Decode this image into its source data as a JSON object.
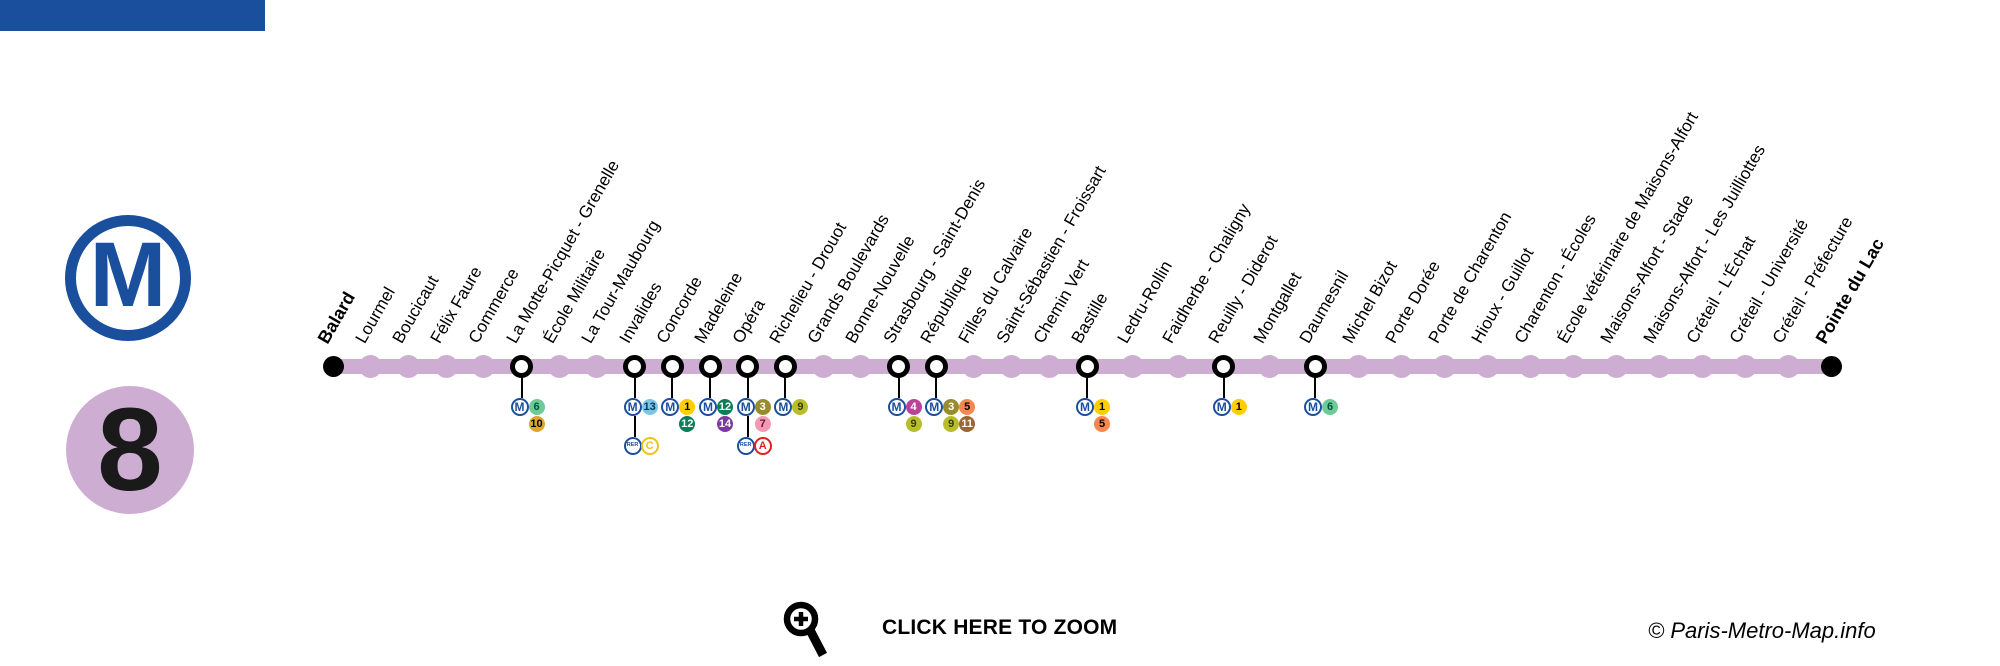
{
  "branding": {
    "top_bar_color": "#1A4F9E",
    "metro_blue": "#1A4F9E",
    "line_color": "#CEADD2",
    "metro_letter": "M",
    "line_number": "8"
  },
  "map": {
    "line_name": "Paris Metro Line 8",
    "stations": [
      {
        "label": "Balard",
        "kind": "terminus"
      },
      {
        "label": "Lourmel",
        "kind": "stop"
      },
      {
        "label": "Boucicaut",
        "kind": "stop"
      },
      {
        "label": "Félix Faure",
        "kind": "stop"
      },
      {
        "label": "Commerce",
        "kind": "stop"
      },
      {
        "label": "La Motte-Picquet - Grenelle",
        "kind": "interchange",
        "metro_rows": [
          [
            "6"
          ],
          [
            "10"
          ]
        ]
      },
      {
        "label": "École Militaire",
        "kind": "stop"
      },
      {
        "label": "La Tour-Maubourg",
        "kind": "stop"
      },
      {
        "label": "Invalides",
        "kind": "interchange",
        "metro_rows": [
          [
            "13"
          ]
        ],
        "rer": [
          "C"
        ]
      },
      {
        "label": "Concorde",
        "kind": "interchange",
        "metro_rows": [
          [
            "1"
          ],
          [
            "12"
          ]
        ]
      },
      {
        "label": "Madeleine",
        "kind": "interchange",
        "metro_rows": [
          [
            "12"
          ],
          [
            "14"
          ]
        ]
      },
      {
        "label": "Opéra",
        "kind": "interchange",
        "metro_rows": [
          [
            "3"
          ],
          [
            "7"
          ]
        ],
        "rer": [
          "A"
        ]
      },
      {
        "label": "Richelieu - Drouot",
        "kind": "interchange",
        "metro_rows": [
          [
            "9"
          ]
        ]
      },
      {
        "label": "Grands Boulevards",
        "kind": "stop"
      },
      {
        "label": "Bonne-Nouvelle",
        "kind": "stop"
      },
      {
        "label": "Strasbourg - Saint-Denis",
        "kind": "interchange",
        "metro_rows": [
          [
            "4"
          ],
          [
            "9"
          ]
        ]
      },
      {
        "label": "République",
        "kind": "interchange",
        "metro_rows": [
          [
            "3",
            "5"
          ],
          [
            "9",
            "11"
          ]
        ]
      },
      {
        "label": "Filles du Calvaire",
        "kind": "stop"
      },
      {
        "label": "Saint-Sébastien - Froissart",
        "kind": "stop"
      },
      {
        "label": "Chemin Vert",
        "kind": "stop"
      },
      {
        "label": "Bastille",
        "kind": "interchange",
        "metro_rows": [
          [
            "1"
          ],
          [
            "5"
          ]
        ]
      },
      {
        "label": "Ledru-Rollin",
        "kind": "stop"
      },
      {
        "label": "Faidherbe - Chaligny",
        "kind": "stop"
      },
      {
        "label": "Reuilly - Diderot",
        "kind": "interchange",
        "metro_rows": [
          [
            "1"
          ]
        ]
      },
      {
        "label": "Montgallet",
        "kind": "stop"
      },
      {
        "label": "Daumesnil",
        "kind": "interchange",
        "metro_rows": [
          [
            "6"
          ]
        ]
      },
      {
        "label": "Michel Bizot",
        "kind": "stop"
      },
      {
        "label": "Porte Dorée",
        "kind": "stop"
      },
      {
        "label": "Porte de Charenton",
        "kind": "stop"
      },
      {
        "label": "Hioux - Guillot",
        "kind": "stop"
      },
      {
        "label": "Charenton - Écoles",
        "kind": "stop"
      },
      {
        "label": "École vétérinaire de Maisons-Alfort",
        "kind": "stop"
      },
      {
        "label": "Maisons-Alfort - Stade",
        "kind": "stop"
      },
      {
        "label": "Maisons-Alfort - Les Juilliottes",
        "kind": "stop"
      },
      {
        "label": "Créteil - L'Échat",
        "kind": "stop"
      },
      {
        "label": "Créteil - Université",
        "kind": "stop"
      },
      {
        "label": "Créteil - Préfecture",
        "kind": "stop"
      },
      {
        "label": "Pointe du Lac",
        "kind": "terminus"
      }
    ]
  },
  "badge_colors": {
    "1": {
      "bg": "#FFCD00",
      "fg": "#000000"
    },
    "3": {
      "bg": "#9A8C2B",
      "fg": "#FFFFFF"
    },
    "4": {
      "bg": "#BB4397",
      "fg": "#FFFFFF"
    },
    "5": {
      "bg": "#F5874F",
      "fg": "#000000"
    },
    "6": {
      "bg": "#6ECA97",
      "fg": "#00543A"
    },
    "7": {
      "bg": "#F598B5",
      "fg": "#5A1E33"
    },
    "9": {
      "bg": "#B8BE2A",
      "fg": "#3A3C00"
    },
    "10": {
      "bg": "#DDA72F",
      "fg": "#000000"
    },
    "11": {
      "bg": "#9C6633",
      "fg": "#FFFFFF"
    },
    "12": {
      "bg": "#0A7E56",
      "fg": "#FFFFFF"
    },
    "13": {
      "bg": "#7CC5E8",
      "fg": "#003B55"
    },
    "14": {
      "bg": "#7C3A9C",
      "fg": "#FFFFFF"
    }
  },
  "rer_colors": {
    "A": "#E02020",
    "C": "#EEC31E"
  },
  "badge_letters": {
    "metro": "M",
    "rer": "RER"
  },
  "footer": {
    "zoom_text": "CLICK HERE TO ZOOM",
    "copyright": "© Paris-Metro-Map.info"
  }
}
